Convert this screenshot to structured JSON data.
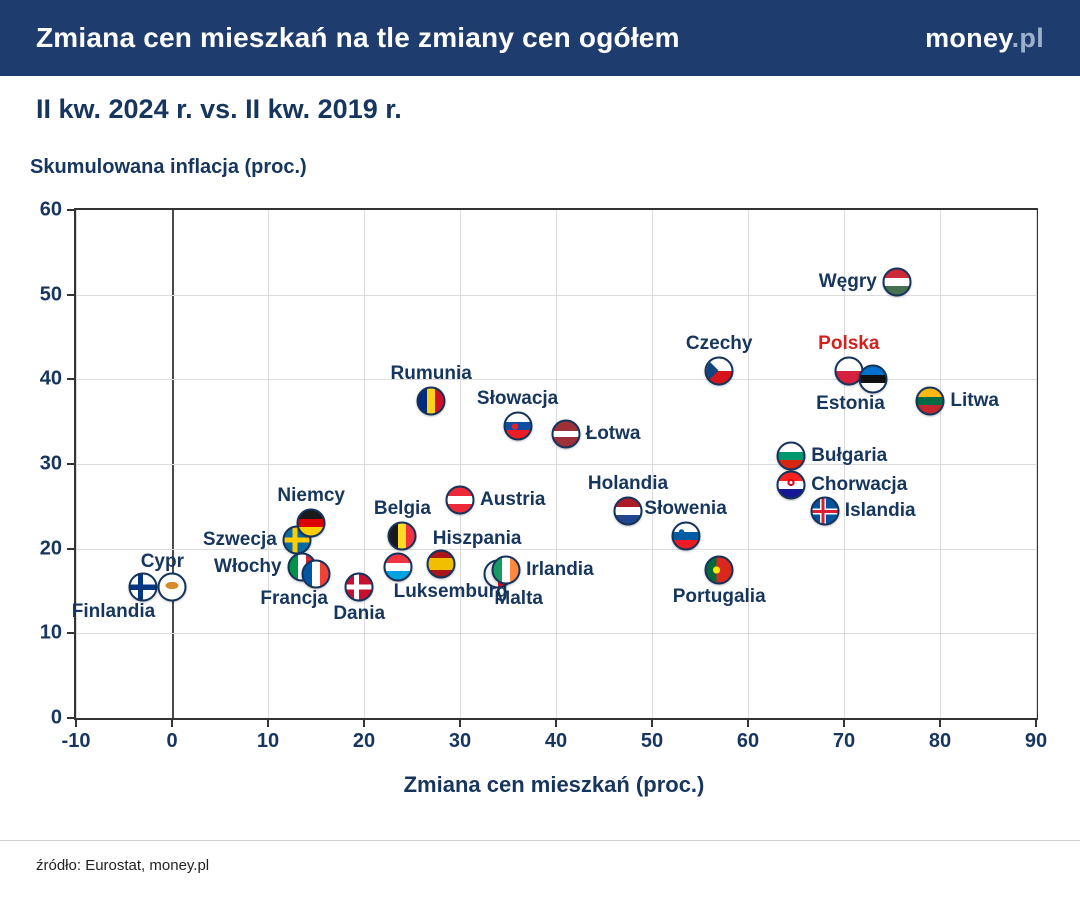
{
  "header": {
    "title": "Zmiana cen mieszkań na tle zmiany cen ogółem",
    "brand_bold": "money",
    "brand_light": ".pl"
  },
  "subtitle": "II kw. 2024 r. vs. II kw. 2019 r.",
  "footer": {
    "source": "źródło: Eurostat, money.pl"
  },
  "colors": {
    "header_bg": "#1e3c6d",
    "text": "#17365d",
    "highlight": "#d4211f",
    "grid": "#dcdcdc"
  },
  "chart_data": {
    "type": "scatter",
    "title": "Zmiana cen mieszkań na tle zmiany cen ogółem",
    "subtitle": "II kw. 2024 r. vs. II kw. 2019 r.",
    "xlabel": "Zmiana cen mieszkań (proc.)",
    "ylabel": "Skumulowana inflacja (proc.)",
    "xlim": [
      -10,
      90
    ],
    "ylim": [
      0,
      60
    ],
    "xticks": [
      -10,
      0,
      10,
      20,
      30,
      40,
      50,
      60,
      70,
      80,
      90
    ],
    "yticks": [
      0,
      10,
      20,
      30,
      40,
      50,
      60
    ],
    "grid": true,
    "marker": "flag-circle",
    "points": [
      {
        "name": "Finlandia",
        "x": -3,
        "y": 15.5,
        "flag": "fi",
        "label_pos": "below-left"
      },
      {
        "name": "Cypr",
        "x": 0,
        "y": 15.5,
        "flag": "cy",
        "label_pos": "above-left"
      },
      {
        "name": "Szwecja",
        "x": 13,
        "y": 21,
        "flag": "se",
        "label_pos": "left"
      },
      {
        "name": "Niemcy",
        "x": 14.5,
        "y": 23,
        "flag": "de",
        "label_pos": "above"
      },
      {
        "name": "Włochy",
        "x": 13.5,
        "y": 17.8,
        "flag": "it",
        "label_pos": "left"
      },
      {
        "name": "Francja",
        "x": 15,
        "y": 17,
        "flag": "fr",
        "label_pos": "below-left"
      },
      {
        "name": "Dania",
        "x": 19.5,
        "y": 15.5,
        "flag": "dk",
        "label_pos": "below"
      },
      {
        "name": "Belgia",
        "x": 24,
        "y": 21.5,
        "flag": "be",
        "label_pos": "above"
      },
      {
        "name": "Luksemburg",
        "x": 23.5,
        "y": 17.8,
        "flag": "lu",
        "label_pos": "below-right"
      },
      {
        "name": "Rumunia",
        "x": 27,
        "y": 37.5,
        "flag": "ro",
        "label_pos": "above"
      },
      {
        "name": "Hiszpania",
        "x": 28,
        "y": 18.2,
        "flag": "es",
        "label_pos": "above-right"
      },
      {
        "name": "Austria",
        "x": 30,
        "y": 25.8,
        "flag": "at",
        "label_pos": "right"
      },
      {
        "name": "Malta",
        "x": 34,
        "y": 17,
        "flag": "mt",
        "label_pos": "below-right"
      },
      {
        "name": "Irlandia",
        "x": 34.8,
        "y": 17.5,
        "flag": "ie",
        "label_pos": "right"
      },
      {
        "name": "Słowacja",
        "x": 36,
        "y": 34.5,
        "flag": "sk",
        "label_pos": "above"
      },
      {
        "name": "Łotwa",
        "x": 41,
        "y": 33.5,
        "flag": "lv",
        "label_pos": "right"
      },
      {
        "name": "Holandia",
        "x": 47.5,
        "y": 24.5,
        "flag": "nl",
        "label_pos": "above"
      },
      {
        "name": "Słowenia",
        "x": 53.5,
        "y": 21.5,
        "flag": "si",
        "label_pos": "above"
      },
      {
        "name": "Czechy",
        "x": 57,
        "y": 41,
        "flag": "cz",
        "label_pos": "above"
      },
      {
        "name": "Portugalia",
        "x": 57,
        "y": 17.5,
        "flag": "pt",
        "label_pos": "below"
      },
      {
        "name": "Bułgaria",
        "x": 64.5,
        "y": 31,
        "flag": "bg",
        "label_pos": "right"
      },
      {
        "name": "Chorwacja",
        "x": 64.5,
        "y": 27.5,
        "flag": "hr",
        "label_pos": "right"
      },
      {
        "name": "Islandia",
        "x": 68,
        "y": 24.5,
        "flag": "is",
        "label_pos": "right"
      },
      {
        "name": "Polska",
        "x": 70.5,
        "y": 41,
        "flag": "pl",
        "label_pos": "above",
        "highlight": true
      },
      {
        "name": "Estonia",
        "x": 73,
        "y": 40,
        "flag": "ee",
        "label_pos": "below-left"
      },
      {
        "name": "Węgry",
        "x": 75.5,
        "y": 51.5,
        "flag": "hu",
        "label_pos": "left"
      },
      {
        "name": "Litwa",
        "x": 79,
        "y": 37.5,
        "flag": "lt",
        "label_pos": "right"
      }
    ]
  }
}
